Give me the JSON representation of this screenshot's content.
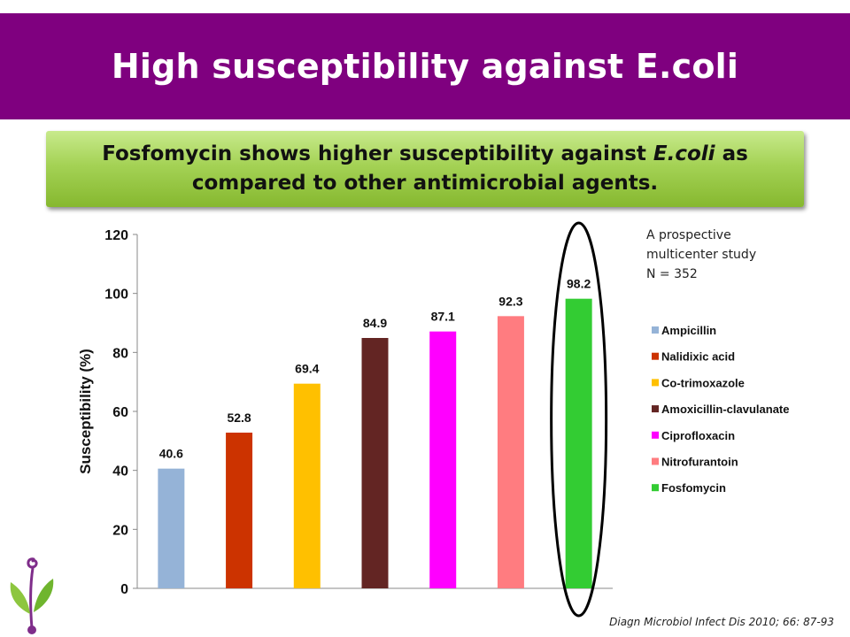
{
  "slide": {
    "title": "High susceptibility against E.coli",
    "callout": {
      "line1_pre": "Fosfomycin shows higher susceptibility against ",
      "line1_em": "E.coli",
      "line1_post": " as",
      "line2": "compared to other antimicrobial agents."
    },
    "study_note": [
      "A prospective",
      "multicenter study",
      "N = 352"
    ],
    "citation": "Diagn Microbiol Infect Dis 2010; 66: 87-93",
    "colors": {
      "title_bg": "#7f007f",
      "callout_green": "#a4d255",
      "highlight_ellipse": "#000000"
    }
  },
  "chart_data": {
    "type": "bar",
    "title": "",
    "xlabel": "",
    "ylabel": "Susceptibility (%)",
    "ylim": [
      0,
      120
    ],
    "yticks": [
      0,
      20,
      40,
      60,
      80,
      100,
      120
    ],
    "categories": [
      "Ampicillin",
      "Nalidixic acid",
      "Co-trimoxazole",
      "Amoxicillin-clavulanate",
      "Ciprofloxacin",
      "Nitrofurantoin",
      "Fosfomycin"
    ],
    "values": [
      40.6,
      52.8,
      69.4,
      84.9,
      87.1,
      92.3,
      98.2
    ],
    "data_labels": [
      "40.6",
      "52.8",
      "69.4",
      "84.9",
      "87.1",
      "92.3",
      "98.2"
    ],
    "colors": [
      "#95b3d7",
      "#cc3300",
      "#ffc000",
      "#632523",
      "#ff00ff",
      "#ff7c80",
      "#33cc33"
    ],
    "legend_position": "right",
    "highlighted_category": "Fosfomycin"
  }
}
